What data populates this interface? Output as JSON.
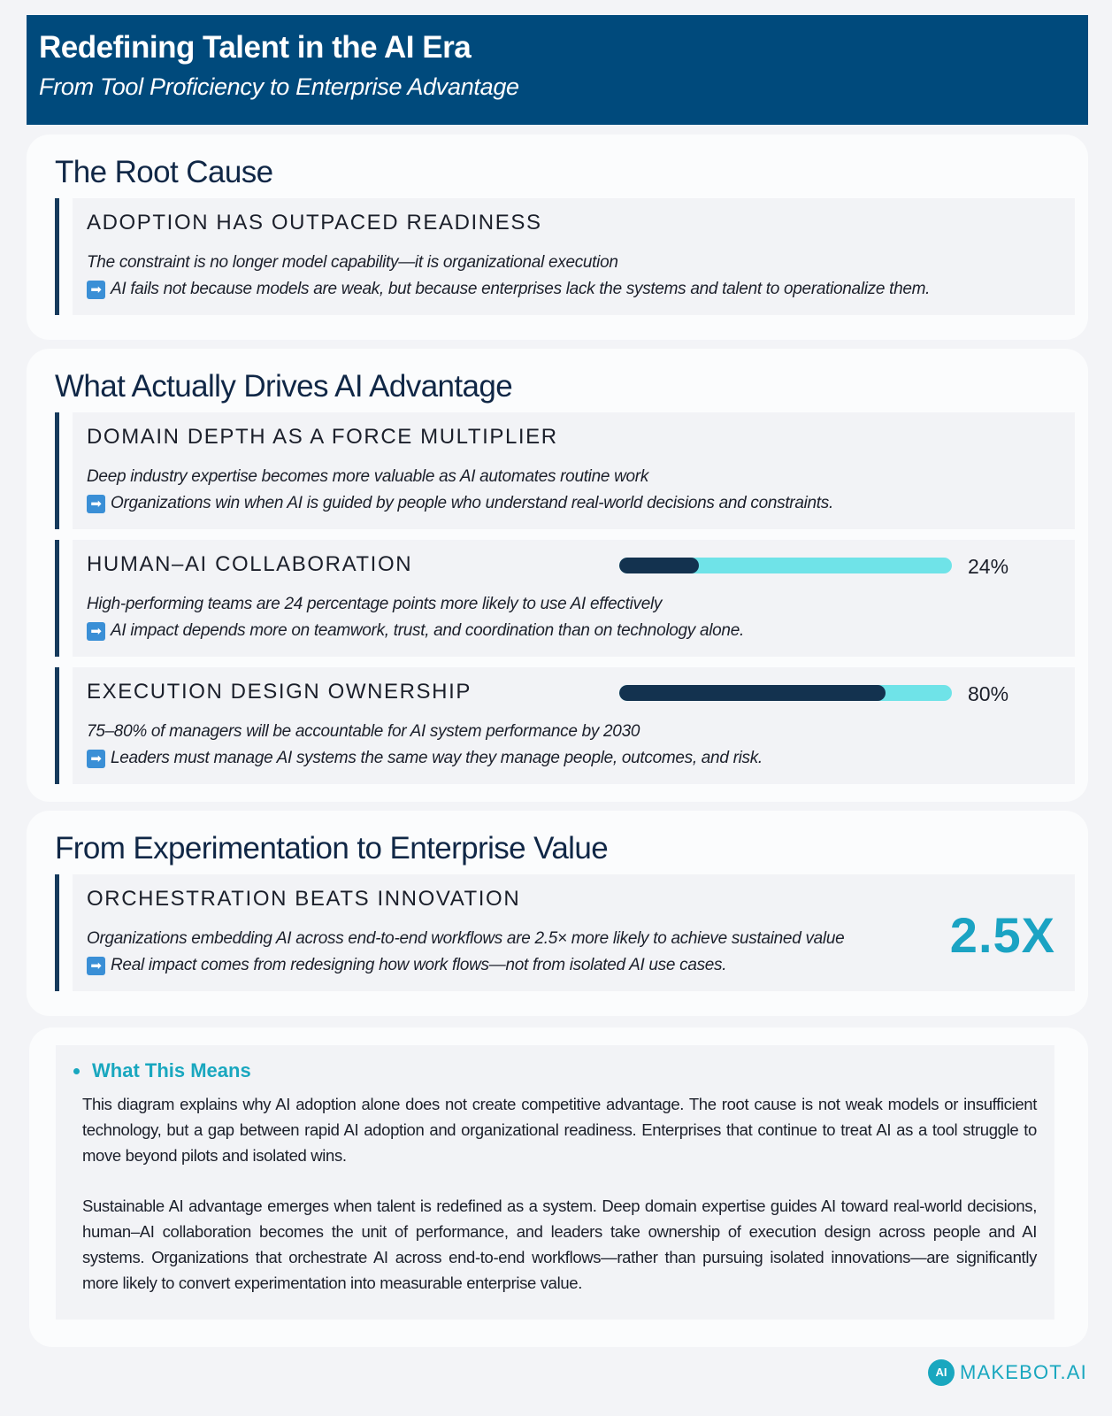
{
  "header": {
    "title": "Redefining Talent in the AI Era",
    "subtitle": "From Tool Proficiency to Enterprise Advantage"
  },
  "root_cause": {
    "heading": "The Root Cause",
    "item": {
      "title": "ADOPTION HAS OUTPACED READINESS",
      "sub": "The constraint is no longer model capability—it is organizational execution",
      "note": "AI fails not because models are weak, but because enterprises lack the systems and talent to operationalize them."
    }
  },
  "drivers": {
    "heading": "What Actually Drives AI Advantage",
    "items": [
      {
        "title": "DOMAIN DEPTH AS A FORCE MULTIPLIER",
        "sub": "Deep industry expertise becomes more valuable as AI automates routine work",
        "note": "Organizations win when AI is guided by people who understand real-world decisions and constraints."
      },
      {
        "title": "HUMAN–AI COLLABORATION",
        "sub": "High-performing teams are 24 percentage points more likely to use AI effectively",
        "note": "AI impact depends more on teamwork, trust, and coordination than on technology alone.",
        "progress": 24,
        "progress_label": "24%"
      },
      {
        "title": "EXECUTION DESIGN OWNERSHIP",
        "sub": "75–80% of managers will be accountable for AI system performance by 2030",
        "note": "Leaders must manage AI systems the same way they manage people, outcomes, and risk.",
        "progress": 80,
        "progress_label": "80%"
      }
    ]
  },
  "value": {
    "heading": "From Experimentation to Enterprise Value",
    "item": {
      "title": "ORCHESTRATION BEATS INNOVATION",
      "sub": "Organizations embedding AI across end-to-end workflows are 2.5× more likely to achieve sustained value",
      "note": "Real impact comes from redesigning how work flows—not from isolated AI use cases.",
      "stat": "2.5X"
    }
  },
  "means": {
    "title": "What This Means",
    "paragraphs": [
      "This diagram explains why AI adoption alone does not create competitive advantage. The root cause is not weak models or insufficient technology, but a gap between rapid AI adoption and organizational readiness. Enterprises that continue to treat AI as a tool struggle to move beyond pilots and isolated wins.",
      "Sustainable AI advantage emerges when talent is redefined as a system. Deep domain expertise guides AI toward real-world decisions, human–AI collaboration becomes the unit of performance, and leaders take ownership of execution design across people and AI systems. Organizations that orchestrate AI across end-to-end workflows—rather than pursuing isolated innovations—are significantly more likely to convert experimentation into measurable enterprise value."
    ]
  },
  "brand": {
    "logo_text": "AI",
    "name": "MAKEBOT.AI"
  },
  "colors": {
    "header_bg": "#004a7c",
    "accent": "#19a7bf",
    "bar_track": "#6fe3e8",
    "bar_fill": "#13324f"
  },
  "icons": {
    "note_arrow": "arrow-right-icon"
  }
}
